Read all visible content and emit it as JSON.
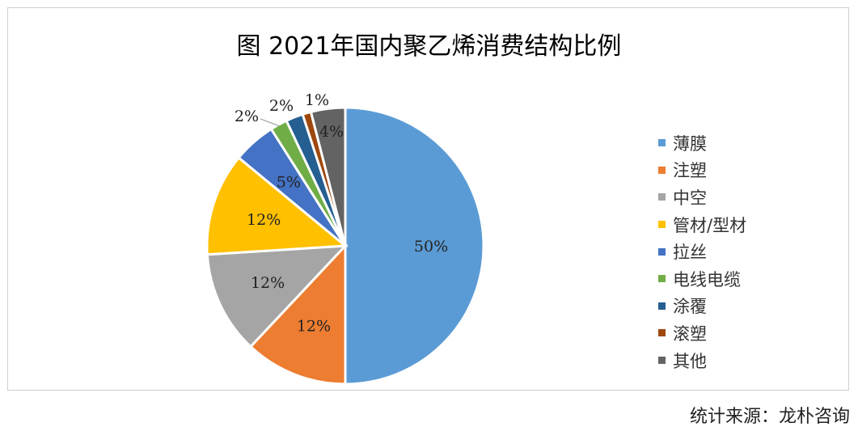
{
  "chart_data": {
    "type": "pie",
    "title": "图 2021年国内聚乙烯消费结构比例",
    "slices": [
      {
        "name": "薄膜",
        "value": 50,
        "label": "50%",
        "color": "#5B9BD5"
      },
      {
        "name": "注塑",
        "value": 12,
        "label": "12%",
        "color": "#ED7D31"
      },
      {
        "name": "中空",
        "value": 12,
        "label": "12%",
        "color": "#A5A5A5"
      },
      {
        "name": "管材/型材",
        "value": 12,
        "label": "12%",
        "color": "#FFC000"
      },
      {
        "name": "拉丝",
        "value": 5,
        "label": "5%",
        "color": "#4472C4"
      },
      {
        "name": "电线电缆",
        "value": 2,
        "label": "2%",
        "color": "#70AD47"
      },
      {
        "name": "涂覆",
        "value": 2,
        "label": "2%",
        "color": "#255E91"
      },
      {
        "name": "滚塑",
        "value": 1,
        "label": "1%",
        "color": "#9E480E"
      },
      {
        "name": "其他",
        "value": 4,
        "label": "4%",
        "color": "#636363"
      }
    ],
    "legend_position": "right"
  },
  "source": "统计来源：龙朴咨询"
}
